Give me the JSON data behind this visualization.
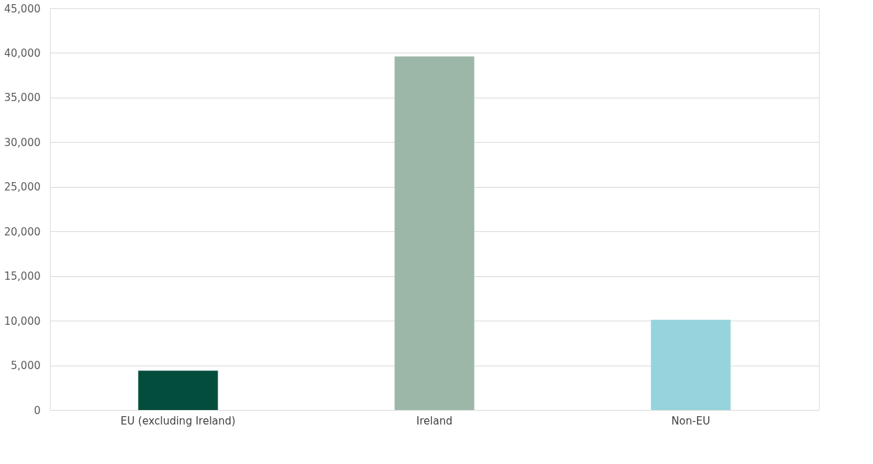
{
  "chart_data": {
    "type": "bar",
    "categories": [
      "EU (excluding Ireland)",
      "Ireland",
      "Non-EU"
    ],
    "values": [
      4400,
      39600,
      10100
    ],
    "colors": [
      "#034d3c",
      "#9cb7a7",
      "#95d4dd"
    ],
    "ylim": [
      0,
      45000
    ],
    "yticks": [
      {
        "value": 0,
        "label": "0"
      },
      {
        "value": 5000,
        "label": "5,000"
      },
      {
        "value": 10000,
        "label": "10,000"
      },
      {
        "value": 15000,
        "label": "15,000"
      },
      {
        "value": 20000,
        "label": "20,000"
      },
      {
        "value": 25000,
        "label": "25,000"
      },
      {
        "value": 30000,
        "label": "30,000"
      },
      {
        "value": 35000,
        "label": "35,000"
      },
      {
        "value": 40000,
        "label": "40,000"
      },
      {
        "value": 45000,
        "label": "45,000"
      }
    ],
    "grid": "y"
  }
}
